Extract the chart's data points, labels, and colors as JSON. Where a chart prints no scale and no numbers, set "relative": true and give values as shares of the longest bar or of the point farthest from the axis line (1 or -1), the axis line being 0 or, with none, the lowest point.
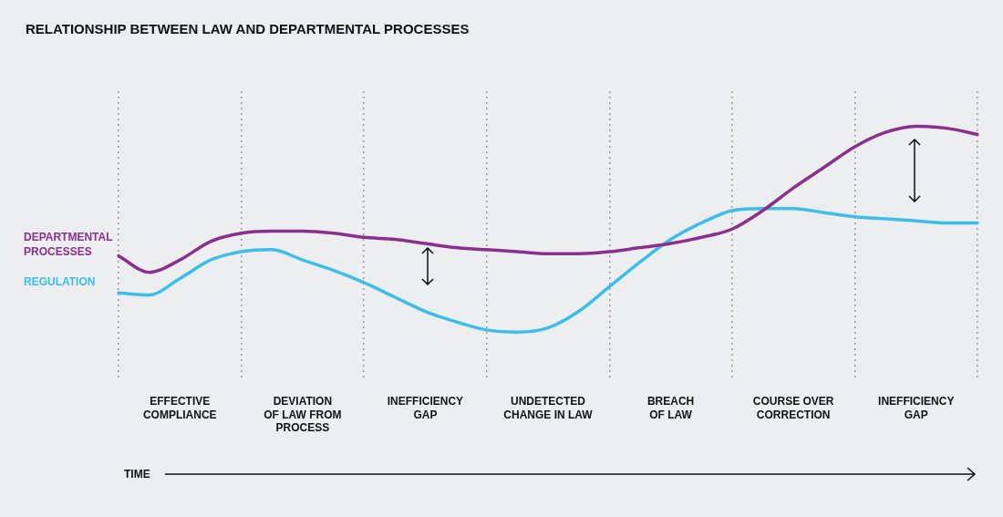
{
  "chart_data": {
    "type": "line",
    "title": "RELATIONSHIP BETWEEN LAW AND DEPARTMENTAL PROCESSES",
    "xlabel": "TIME",
    "relative": true,
    "legend": false,
    "grid": "x",
    "line_style": "solid",
    "marker": "none",
    "categories": [
      null,
      null,
      "EFFECTIVE\nCOMPLIANCE",
      null,
      null,
      null,
      "DEVIATION\nOF LAW FROM\nPROCESS",
      null,
      null,
      null,
      "INEFFICIENCY\nGAP",
      null,
      null,
      null,
      "UNDETECTED\nCHANGE IN LAW",
      null,
      null,
      null,
      "BREACH\nOF LAW",
      null,
      null,
      null,
      "COURSE OVER\nCORRECTION",
      null,
      null,
      null,
      "INEFFICIENCY\nGAP",
      null,
      null
    ],
    "series": [
      {
        "name": "DEPARTMENTAL PROCESSES",
        "color": "#8b2f8f",
        "values": [
          0.37,
          0.29,
          0.35,
          0.44,
          0.48,
          0.49,
          0.49,
          0.48,
          0.46,
          0.45,
          0.43,
          0.41,
          0.4,
          0.39,
          0.38,
          0.38,
          0.39,
          0.41,
          0.43,
          0.46,
          0.5,
          0.59,
          0.7,
          0.8,
          0.9,
          0.97,
          1.0,
          0.99,
          0.96
        ]
      },
      {
        "name": "REGULATION",
        "color": "#3dbde9",
        "values": [
          0.19,
          0.18,
          0.26,
          0.35,
          0.39,
          0.4,
          0.35,
          0.3,
          0.24,
          0.17,
          0.1,
          0.05,
          0.01,
          0,
          0.02,
          0.1,
          0.22,
          0.34,
          0.45,
          0.53,
          0.59,
          0.6,
          0.6,
          0.58,
          0.56,
          0.55,
          0.54,
          0.53,
          0.53
        ]
      }
    ]
  }
}
